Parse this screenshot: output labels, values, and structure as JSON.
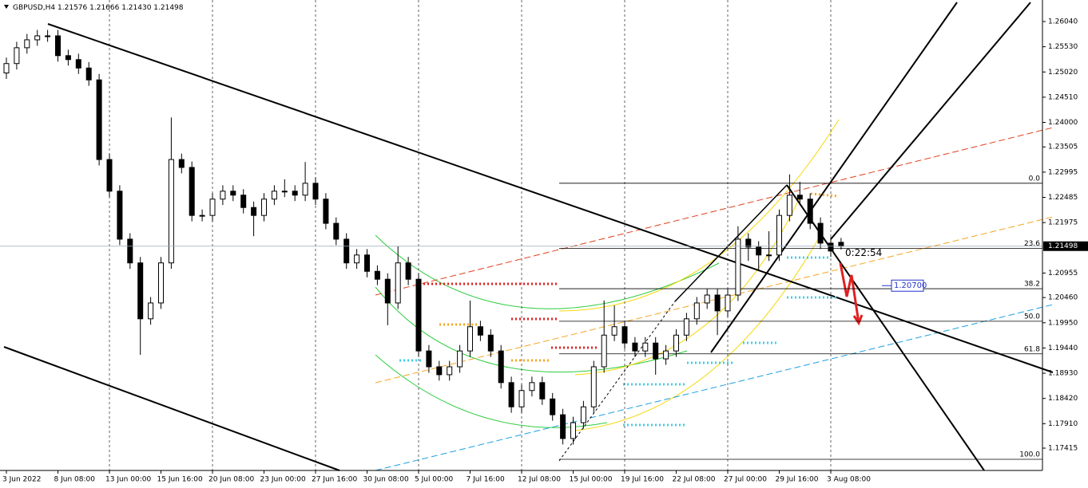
{
  "chart_data": {
    "type": "candlestick",
    "header": {
      "symbol": "GBPUSD,H4",
      "quote": "1.21576 1.21666 1.21430 1.21498"
    },
    "categories": [
      "3 Jun 2022",
      null,
      null,
      null,
      null,
      "8 Jun 08:00",
      null,
      null,
      null,
      null,
      "13 Jun 00:00",
      null,
      null,
      null,
      null,
      "15 Jun 16:00",
      null,
      null,
      null,
      null,
      "20 Jun 08:00",
      null,
      null,
      null,
      null,
      "23 Jun 00:00",
      null,
      null,
      null,
      null,
      "27 Jun 16:00",
      null,
      null,
      null,
      null,
      "30 Jun 08:00",
      null,
      null,
      null,
      null,
      "5 Jul 00:00",
      null,
      null,
      null,
      null,
      "7 Jul 16:00",
      null,
      null,
      null,
      null,
      "12 Jul 08:00",
      null,
      null,
      null,
      null,
      "15 Jul 00:00",
      null,
      null,
      null,
      null,
      "19 Jul 16:00",
      null,
      null,
      null,
      null,
      "22 Jul 08:00",
      null,
      null,
      null,
      null,
      "27 Jul 00:00",
      null,
      null,
      null,
      null,
      "29 Jul 16:00",
      null,
      null,
      null,
      null,
      "3 Aug 08:00",
      null
    ],
    "open": [
      1.25,
      1.2519,
      1.2551,
      1.2567,
      1.2575,
      1.2575,
      1.2535,
      1.2527,
      1.251,
      1.2486,
      1.2325,
      1.2261,
      1.2164,
      1.2116,
      1.2003,
      1.2035,
      1.2116,
      1.2325,
      1.2309,
      1.2212,
      1.2212,
      1.2245,
      1.2261,
      1.2253,
      1.2228,
      1.2212,
      1.2245,
      1.2261,
      1.2261,
      1.2253,
      1.2277,
      1.2245,
      1.2196,
      1.2164,
      1.2116,
      1.2132,
      1.2099,
      1.2083,
      1.2035,
      1.2116,
      1.2083,
      1.1938,
      1.1906,
      1.189,
      1.1906,
      1.1938,
      1.1987,
      1.197,
      1.1938,
      1.1874,
      1.1825,
      1.1858,
      1.1874,
      1.1841,
      1.1809,
      1.1761,
      1.1793,
      1.1825,
      1.1906,
      1.197,
      1.1987,
      1.1954,
      1.1938,
      1.1954,
      1.1922,
      1.1938,
      1.197,
      1.2003,
      1.2035,
      1.2051,
      1.2019,
      1.2051,
      1.2164,
      1.2148,
      1.2132,
      1.2132,
      1.2212,
      1.2253,
      1.2245,
      1.2196,
      1.2156,
      1.21576
    ],
    "high": [
      1.2531,
      1.2563,
      1.2579,
      1.2587,
      1.2587,
      1.2587,
      1.2547,
      1.2539,
      1.2522,
      1.2498,
      1.2337,
      1.2273,
      1.2176,
      1.2128,
      1.2047,
      1.2128,
      1.241,
      1.2337,
      1.2321,
      1.2224,
      1.2257,
      1.2273,
      1.2273,
      1.2265,
      1.224,
      1.2257,
      1.2273,
      1.2285,
      1.2273,
      1.232,
      1.2289,
      1.2257,
      1.2208,
      1.2176,
      1.2144,
      1.2144,
      1.2111,
      1.2095,
      1.215,
      1.2128,
      1.2095,
      1.195,
      1.1918,
      1.1918,
      1.195,
      1.204,
      1.1999,
      1.1982,
      1.195,
      1.1886,
      1.187,
      1.1886,
      1.1886,
      1.1853,
      1.1821,
      1.1805,
      1.1837,
      1.1918,
      1.204,
      1.203,
      1.1999,
      1.1966,
      1.1966,
      1.1966,
      1.195,
      1.1982,
      1.2015,
      1.2047,
      1.2063,
      1.2063,
      1.2063,
      1.219,
      1.2176,
      1.216,
      1.218,
      1.2224,
      1.2295,
      1.228,
      1.2257,
      1.2208,
      1.2168,
      1.21666
    ],
    "low": [
      1.2488,
      1.2507,
      1.2539,
      1.2555,
      1.2563,
      1.2523,
      1.2515,
      1.2498,
      1.2474,
      1.2313,
      1.2249,
      1.2152,
      1.2104,
      1.193,
      1.1991,
      1.2023,
      1.2104,
      1.2297,
      1.22,
      1.22,
      1.22,
      1.2233,
      1.2241,
      1.2216,
      1.217,
      1.22,
      1.2233,
      1.2249,
      1.2241,
      1.2241,
      1.2233,
      1.2184,
      1.2152,
      1.2104,
      1.2104,
      1.2087,
      1.2071,
      1.199,
      1.2023,
      1.2071,
      1.1926,
      1.1894,
      1.1878,
      1.1878,
      1.1894,
      1.1926,
      1.1958,
      1.1926,
      1.1862,
      1.1813,
      1.1813,
      1.1846,
      1.1829,
      1.1797,
      1.1749,
      1.1749,
      1.1781,
      1.1813,
      1.1894,
      1.1958,
      1.1942,
      1.1926,
      1.1926,
      1.189,
      1.191,
      1.1926,
      1.1958,
      1.1991,
      1.2023,
      1.197,
      1.2007,
      1.2039,
      1.212,
      1.21,
      1.212,
      1.212,
      1.22,
      1.2233,
      1.2184,
      1.2144,
      1.2128,
      1.2143
    ],
    "close": [
      1.2519,
      1.2551,
      1.2567,
      1.2575,
      1.2575,
      1.2535,
      1.2527,
      1.251,
      1.2486,
      1.2325,
      1.2261,
      1.2164,
      1.2116,
      1.2003,
      1.2035,
      1.2116,
      1.2325,
      1.2309,
      1.2212,
      1.2212,
      1.2245,
      1.2261,
      1.2253,
      1.2228,
      1.2212,
      1.2245,
      1.2261,
      1.2261,
      1.2253,
      1.2277,
      1.2245,
      1.2196,
      1.2164,
      1.2116,
      1.2132,
      1.2099,
      1.2083,
      1.2035,
      1.2116,
      1.2083,
      1.1938,
      1.1906,
      1.189,
      1.1906,
      1.1938,
      1.1987,
      1.197,
      1.1938,
      1.1874,
      1.1825,
      1.1858,
      1.1874,
      1.1841,
      1.1809,
      1.1761,
      1.1793,
      1.1825,
      1.1906,
      1.197,
      1.1987,
      1.1954,
      1.1938,
      1.1954,
      1.1922,
      1.1938,
      1.197,
      1.2003,
      1.2035,
      1.2051,
      1.2019,
      1.2051,
      1.2164,
      1.2148,
      1.2132,
      1.2132,
      1.2212,
      1.2253,
      1.2245,
      1.2196,
      1.2156,
      1.214,
      1.21498
    ],
    "ylim": [
      1.16964,
      1.26475
    ],
    "yticks": [
      {
        "value": 1.2604,
        "label": "1.26040"
      },
      {
        "value": 1.2553,
        "label": "1.25530"
      },
      {
        "value": 1.2502,
        "label": "1.25020"
      },
      {
        "value": 1.2451,
        "label": "1.24510"
      },
      {
        "value": 1.24,
        "label": "1.24000"
      },
      1.23505,
      1.22995,
      1.22485,
      1.21975,
      1.20955,
      {
        "value": 1.2046,
        "label": "1.20460"
      },
      {
        "value": 1.1995,
        "label": "1.19950"
      },
      {
        "value": 1.1944,
        "label": "1.19440"
      },
      {
        "value": 1.1893,
        "label": "1.18930"
      },
      {
        "value": 1.1842,
        "label": "1.18420"
      },
      {
        "value": 1.1791,
        "label": "1.17910"
      },
      1.17415
    ],
    "grid": true,
    "current_price": 1.21498,
    "countdown": "0:22:54",
    "price_label": {
      "value": 1.207,
      "label": "1.20700"
    },
    "fibonacci": {
      "high": 1.2277,
      "low": 1.1719,
      "levels": [
        {
          "value": 0,
          "label": "0.0"
        },
        23.6,
        38.2,
        {
          "value": 50,
          "label": "50.0"
        },
        61.8,
        {
          "value": 100,
          "label": "100.0"
        }
      ]
    }
  }
}
